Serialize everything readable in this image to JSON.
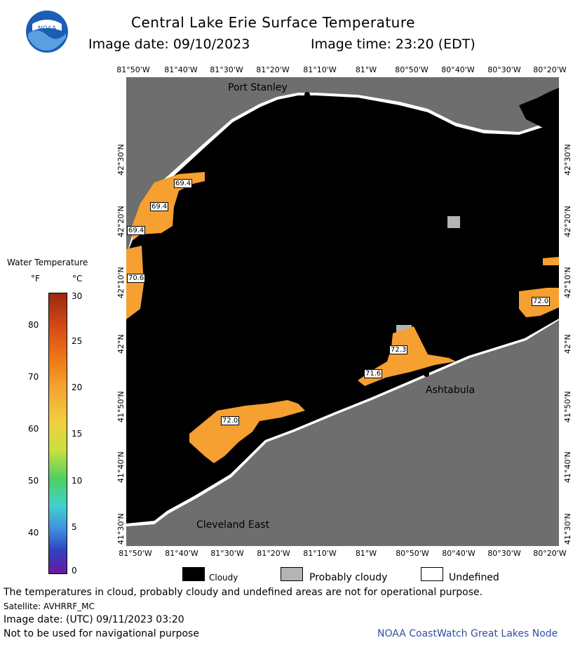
{
  "header": {
    "title": "Central Lake Erie Surface Temperature",
    "image_date": "Image date: 09/10/2023",
    "image_time": "Image time: 23:20 (EDT)"
  },
  "logo": {
    "text": "NOAA",
    "colors": {
      "blue": "#1a5fb4",
      "light": "#5aa0e0"
    }
  },
  "longitudes": [
    "81°50'W",
    "81°40'W",
    "81°30'W",
    "81°20'W",
    "81°10'W",
    "81°W",
    "80°50'W",
    "80°40'W",
    "80°30'W",
    "80°20'W"
  ],
  "latitudes": [
    "41°30'N",
    "41°40'N",
    "41°50'N",
    "42°N",
    "42°10'N",
    "42°20'N",
    "42°30'N"
  ],
  "places": {
    "port_stanley": "Port Stanley",
    "ashtabula": "Ashtabula",
    "cleveland_east": "Cleveland East"
  },
  "temp_labels": [
    "69.4",
    "69.4",
    "69.4",
    "70.6",
    "72.3",
    "71.6",
    "72.0",
    "72.0"
  ],
  "colorbar": {
    "title": "Water Temperature",
    "unit_f": "°F",
    "unit_c": "°C",
    "f_ticks": [
      "80",
      "70",
      "60",
      "50",
      "40"
    ],
    "c_ticks": [
      "30",
      "25",
      "20",
      "15",
      "10",
      "5",
      "0"
    ]
  },
  "legend": {
    "cloudy": "Cloudy",
    "probably_cloudy": "Probably cloudy",
    "undefined": "Undefined"
  },
  "footer": {
    "disclaimer": "The temperatures in cloud, probably cloudy and undefined areas are not for operational purpose.",
    "satellite": "Satellite: AVHRRF_MC",
    "utc_date": "Image date: (UTC) 09/11/2023  03:20",
    "nav_warning": "Not to be used for navigational purpose",
    "credit": "NOAA CoastWatch Great Lakes Node"
  },
  "colors": {
    "land": "#6e6e6e",
    "cloud": "#000000",
    "probably_cloudy": "#b4b4b4",
    "water_warm": "#f5a030",
    "credit": "#3050a0"
  }
}
